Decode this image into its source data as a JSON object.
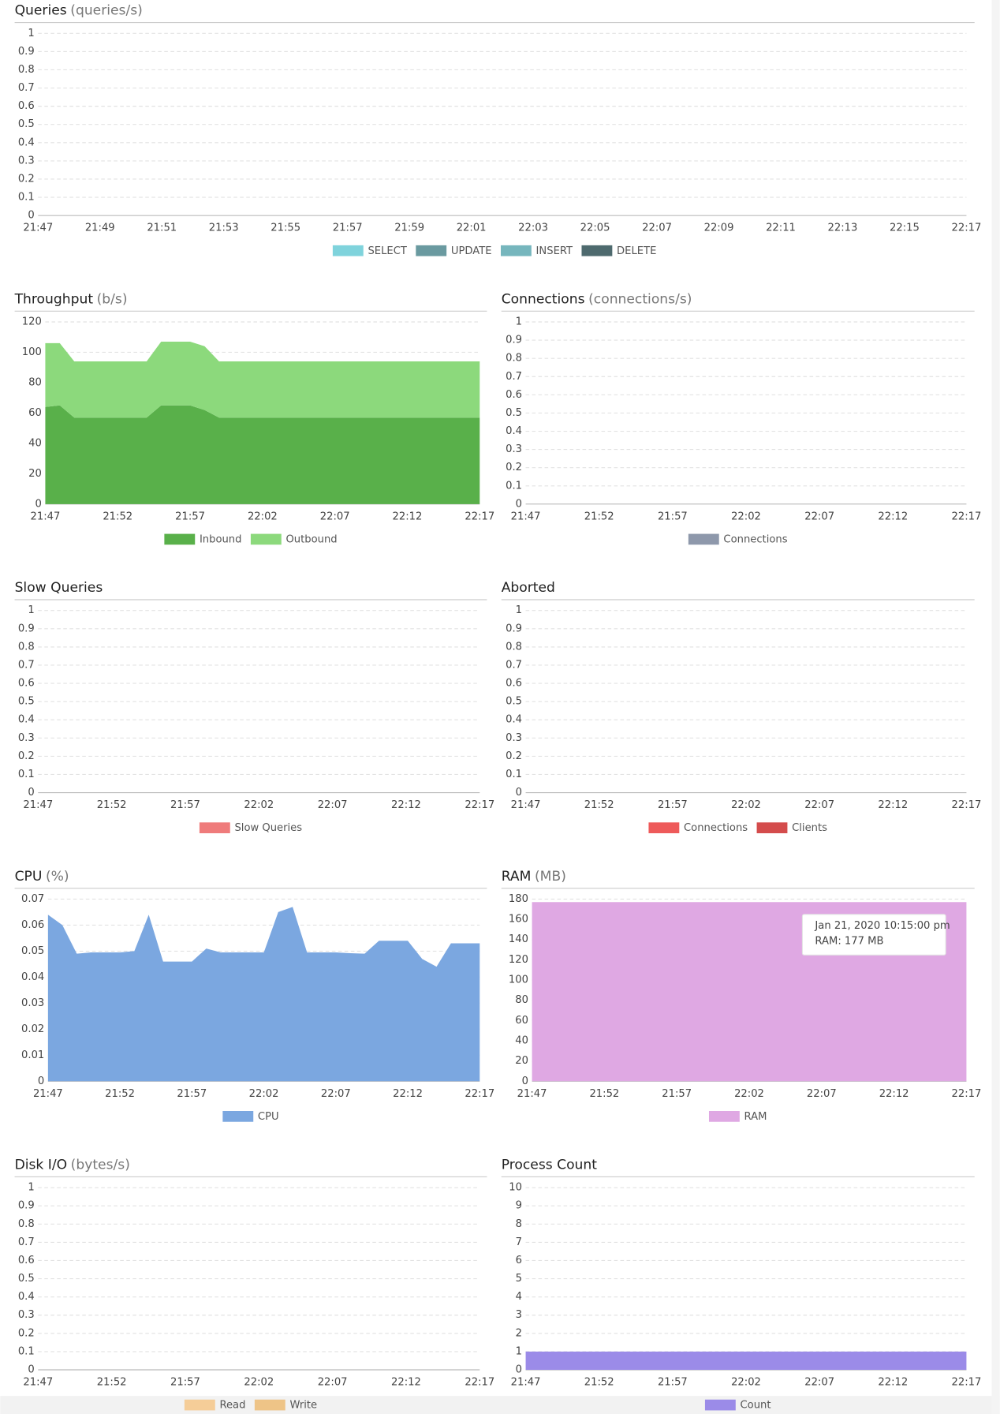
{
  "chart_data": [
    {
      "type": "area",
      "title": "Queries",
      "unit": "(queries/s)",
      "categories": [
        "21:47",
        null,
        "21:49",
        null,
        "21:51",
        null,
        "21:53",
        null,
        "21:55",
        null,
        "21:57",
        null,
        "21:59",
        null,
        "22:01",
        null,
        "22:03",
        null,
        "22:05",
        null,
        "22:07",
        null,
        "22:09",
        null,
        "22:11",
        null,
        "22:13",
        null,
        "22:15",
        null,
        "22:17"
      ],
      "ylim": [
        0,
        1
      ],
      "yticks": [
        0,
        0.1,
        0.2,
        0.3,
        0.4,
        0.5,
        0.6,
        0.7,
        0.8,
        0.9,
        1
      ],
      "grid": true,
      "series": [
        {
          "name": "SELECT",
          "color": "#7fd3dc"
        },
        {
          "name": "UPDATE",
          "color": "#6a9aa0"
        },
        {
          "name": "INSERT",
          "color": "#76b6bd"
        },
        {
          "name": "DELETE",
          "color": "#4e6a6e"
        }
      ]
    },
    {
      "type": "area",
      "title": "Throughput",
      "unit": "(b/s)",
      "stacked": true,
      "categories": [
        "21:47",
        null,
        null,
        null,
        null,
        "21:52",
        null,
        null,
        null,
        null,
        "21:57",
        null,
        null,
        null,
        null,
        "22:02",
        null,
        null,
        null,
        null,
        "22:07",
        null,
        null,
        null,
        null,
        "22:12",
        null,
        null,
        null,
        null,
        "22:17"
      ],
      "ylim": [
        0,
        120
      ],
      "yticks": [
        0,
        20,
        40,
        60,
        80,
        100,
        120
      ],
      "grid": true,
      "series": [
        {
          "name": "Inbound",
          "color": "#59b04a",
          "values": [
            64,
            65,
            57,
            57,
            57,
            57,
            57,
            57,
            65,
            65,
            65,
            62,
            57,
            57,
            57,
            57,
            57,
            57,
            57,
            57,
            57,
            57,
            57,
            57,
            57,
            57,
            57,
            57,
            57,
            57,
            57
          ]
        },
        {
          "name": "Outbound",
          "color": "#8cd97c",
          "values": [
            42,
            41,
            37,
            37,
            37,
            37,
            37,
            37,
            42,
            42,
            42,
            42,
            37,
            37,
            37,
            37,
            37,
            37,
            37,
            37,
            37,
            37,
            37,
            37,
            37,
            37,
            37,
            37,
            37,
            37,
            37
          ]
        }
      ]
    },
    {
      "type": "area",
      "title": "Connections",
      "unit": "(connections/s)",
      "categories": [
        "21:47",
        null,
        null,
        null,
        null,
        "21:52",
        null,
        null,
        null,
        null,
        "21:57",
        null,
        null,
        null,
        null,
        "22:02",
        null,
        null,
        null,
        null,
        "22:07",
        null,
        null,
        null,
        null,
        "22:12",
        null,
        null,
        null,
        null,
        "22:17"
      ],
      "ylim": [
        0,
        1
      ],
      "yticks": [
        0,
        0.1,
        0.2,
        0.3,
        0.4,
        0.5,
        0.6,
        0.7,
        0.8,
        0.9,
        1
      ],
      "grid": true,
      "series": [
        {
          "name": "Connections",
          "color": "#8e98ab"
        }
      ]
    },
    {
      "type": "area",
      "title": "Slow Queries",
      "categories": [
        "21:47",
        null,
        null,
        null,
        null,
        "21:52",
        null,
        null,
        null,
        null,
        "21:57",
        null,
        null,
        null,
        null,
        "22:02",
        null,
        null,
        null,
        null,
        "22:07",
        null,
        null,
        null,
        null,
        "22:12",
        null,
        null,
        null,
        null,
        "22:17"
      ],
      "ylim": [
        0,
        1
      ],
      "yticks": [
        0,
        0.1,
        0.2,
        0.3,
        0.4,
        0.5,
        0.6,
        0.7,
        0.8,
        0.9,
        1
      ],
      "grid": true,
      "series": [
        {
          "name": "Slow Queries",
          "color": "#ef7b7b"
        }
      ]
    },
    {
      "type": "area",
      "title": "Aborted",
      "categories": [
        "21:47",
        null,
        null,
        null,
        null,
        "21:52",
        null,
        null,
        null,
        null,
        "21:57",
        null,
        null,
        null,
        null,
        "22:02",
        null,
        null,
        null,
        null,
        "22:07",
        null,
        null,
        null,
        null,
        "22:12",
        null,
        null,
        null,
        null,
        "22:17"
      ],
      "ylim": [
        0,
        1
      ],
      "yticks": [
        0,
        0.1,
        0.2,
        0.3,
        0.4,
        0.5,
        0.6,
        0.7,
        0.8,
        0.9,
        1
      ],
      "grid": true,
      "series": [
        {
          "name": "Connections",
          "color": "#ee5a5a"
        },
        {
          "name": "Clients",
          "color": "#d44c4c"
        }
      ]
    },
    {
      "type": "area",
      "title": "CPU",
      "unit": "(%)",
      "categories": [
        "21:47",
        null,
        null,
        null,
        null,
        "21:52",
        null,
        null,
        null,
        null,
        "21:57",
        null,
        null,
        null,
        null,
        "22:02",
        null,
        null,
        null,
        null,
        "22:07",
        null,
        null,
        null,
        null,
        "22:12",
        null,
        null,
        null,
        null,
        "22:17"
      ],
      "ylim": [
        0,
        0.07
      ],
      "yticks": [
        0,
        0.01,
        0.02,
        0.03,
        0.04,
        0.05,
        0.06,
        0.07
      ],
      "grid": true,
      "series": [
        {
          "name": "CPU",
          "color": "#7ba7e0",
          "values": [
            0.064,
            0.06,
            0.049,
            0.0495,
            0.0495,
            0.0495,
            0.05,
            0.064,
            0.046,
            0.046,
            0.046,
            0.051,
            0.0495,
            0.0495,
            0.0495,
            0.0495,
            0.065,
            0.067,
            0.0495,
            0.0495,
            0.0495,
            0.0492,
            0.049,
            0.054,
            0.054,
            0.054,
            0.047,
            0.044,
            0.053,
            0.053,
            0.053
          ]
        }
      ]
    },
    {
      "type": "area",
      "title": "RAM",
      "unit": "(MB)",
      "categories": [
        "21:47",
        null,
        null,
        null,
        null,
        "21:52",
        null,
        null,
        null,
        null,
        "21:57",
        null,
        null,
        null,
        null,
        "22:02",
        null,
        null,
        null,
        null,
        "22:07",
        null,
        null,
        null,
        null,
        "22:12",
        null,
        null,
        null,
        null,
        "22:17"
      ],
      "ylim": [
        0,
        180
      ],
      "yticks": [
        0,
        20,
        40,
        60,
        80,
        100,
        120,
        140,
        160,
        180
      ],
      "grid": true,
      "series": [
        {
          "name": "RAM",
          "color": "#dfa8e3",
          "values": [
            177,
            177,
            177,
            177,
            177,
            177,
            177,
            177,
            177,
            177,
            177,
            177,
            177,
            177,
            177,
            177,
            177,
            177,
            177,
            177,
            177,
            177,
            177,
            177,
            177,
            177,
            177,
            177,
            177,
            177,
            177
          ]
        }
      ],
      "tooltip": {
        "title": "Jan 21, 2020 10:15:00 pm",
        "text": "RAM: 177 MB"
      }
    },
    {
      "type": "area",
      "title": "Disk I/O",
      "unit": "(bytes/s)",
      "categories": [
        "21:47",
        null,
        null,
        null,
        null,
        "21:52",
        null,
        null,
        null,
        null,
        "21:57",
        null,
        null,
        null,
        null,
        "22:02",
        null,
        null,
        null,
        null,
        "22:07",
        null,
        null,
        null,
        null,
        "22:12",
        null,
        null,
        null,
        null,
        "22:17"
      ],
      "ylim": [
        0,
        1
      ],
      "yticks": [
        0,
        0.1,
        0.2,
        0.3,
        0.4,
        0.5,
        0.6,
        0.7,
        0.8,
        0.9,
        1
      ],
      "grid": true,
      "series": [
        {
          "name": "Read",
          "color": "#f5cd98"
        },
        {
          "name": "Write",
          "color": "#eec487"
        }
      ]
    },
    {
      "type": "area",
      "title": "Process Count",
      "categories": [
        "21:47",
        null,
        null,
        null,
        null,
        "21:52",
        null,
        null,
        null,
        null,
        "21:57",
        null,
        null,
        null,
        null,
        "22:02",
        null,
        null,
        null,
        null,
        "22:07",
        null,
        null,
        null,
        null,
        "22:12",
        null,
        null,
        null,
        null,
        "22:17"
      ],
      "ylim": [
        0,
        10
      ],
      "yticks": [
        0,
        1,
        2,
        3,
        4,
        5,
        6,
        7,
        8,
        9,
        10
      ],
      "grid": true,
      "series": [
        {
          "name": "Count",
          "color": "#9b8be8",
          "values": [
            1,
            1,
            1,
            1,
            1,
            1,
            1,
            1,
            1,
            1,
            1,
            1,
            1,
            1,
            1,
            1,
            1,
            1,
            1,
            1,
            1,
            1,
            1,
            1,
            1,
            1,
            1,
            1,
            1,
            1,
            1
          ]
        }
      ]
    }
  ]
}
